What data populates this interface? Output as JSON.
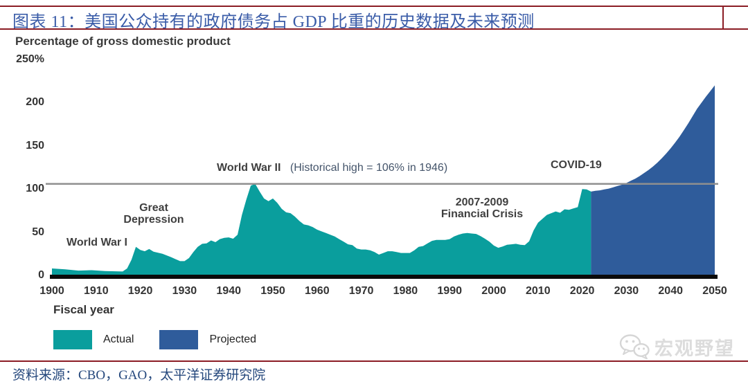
{
  "header": {
    "title": "图表 11：美国公众持有的政府债务占 GDP 比重的历史数据及未来预测"
  },
  "footer": {
    "source": "资料来源：CBO，GAO，太平洋证券研究院",
    "watermark": "宏观野望"
  },
  "legend": {
    "items": [
      {
        "label": "Actual",
        "color": "#0a9e9d"
      },
      {
        "label": "Projected",
        "color": "#2f5c9b"
      }
    ]
  },
  "colors": {
    "rule_red": "#8b1c24",
    "title_blue": "#3a5ca8",
    "source_blue": "#24477c",
    "actual_teal": "#0a9e9d",
    "projected_blue": "#2f5c9b",
    "axis_black": "#0b0b0b",
    "reference_gray": "#8f8f8f"
  },
  "chart_data": {
    "type": "area",
    "title": "Percentage of gross domestic product",
    "xlabel": "Fiscal year",
    "ylabel": "",
    "x_range": [
      1900,
      2050
    ],
    "y_range": [
      0,
      250
    ],
    "grid": false,
    "legend_position": "bottom-left",
    "y_axis": {
      "ticks": [
        {
          "value": 250,
          "label": "250%"
        },
        {
          "value": 200,
          "label": "200"
        },
        {
          "value": 150,
          "label": "150"
        },
        {
          "value": 100,
          "label": "100"
        },
        {
          "value": 50,
          "label": "50"
        },
        {
          "value": 0,
          "label": "0"
        }
      ]
    },
    "x_ticks": [
      1900,
      1910,
      1920,
      1930,
      1940,
      1950,
      1960,
      1970,
      1980,
      1990,
      2000,
      2010,
      2020,
      2030,
      2040,
      2050
    ],
    "reference_line": {
      "value": 106,
      "color": "#8f8f8f",
      "meaning": "Historical high = 106% in 1946"
    },
    "annotations": {
      "wwi": "World War I",
      "great_depression": "Great Depression",
      "wwii": "World War II",
      "wwii_note": "(Historical high = 106% in 1946)",
      "financial_crisis": "2007-2009 Financial Crisis",
      "covid": "COVID-19"
    },
    "series": [
      {
        "name": "Actual",
        "color": "#0a9e9d",
        "points": [
          [
            1900,
            8
          ],
          [
            1903,
            7
          ],
          [
            1906,
            5.5
          ],
          [
            1909,
            6
          ],
          [
            1912,
            5
          ],
          [
            1916,
            4.5
          ],
          [
            1917,
            8
          ],
          [
            1918,
            18
          ],
          [
            1919,
            33
          ],
          [
            1920,
            29.5
          ],
          [
            1921,
            28
          ],
          [
            1922,
            30.5
          ],
          [
            1923,
            27.5
          ],
          [
            1925,
            25
          ],
          [
            1927,
            21
          ],
          [
            1929,
            16.5
          ],
          [
            1930,
            16.5
          ],
          [
            1931,
            20
          ],
          [
            1932,
            27
          ],
          [
            1933,
            33
          ],
          [
            1934,
            36.5
          ],
          [
            1935,
            37
          ],
          [
            1936,
            40.5
          ],
          [
            1937,
            38.5
          ],
          [
            1938,
            42
          ],
          [
            1939,
            43.5
          ],
          [
            1940,
            44
          ],
          [
            1941,
            42.5
          ],
          [
            1942,
            47
          ],
          [
            1943,
            70
          ],
          [
            1944,
            88
          ],
          [
            1945,
            104
          ],
          [
            1946,
            106
          ],
          [
            1947,
            97
          ],
          [
            1948,
            89
          ],
          [
            1949,
            86
          ],
          [
            1950,
            89
          ],
          [
            1951,
            84
          ],
          [
            1952,
            77
          ],
          [
            1953,
            73
          ],
          [
            1954,
            72
          ],
          [
            1955,
            68
          ],
          [
            1956,
            63
          ],
          [
            1957,
            59
          ],
          [
            1958,
            58
          ],
          [
            1959,
            56
          ],
          [
            1960,
            53
          ],
          [
            1961,
            51
          ],
          [
            1962,
            49
          ],
          [
            1963,
            47
          ],
          [
            1964,
            45
          ],
          [
            1965,
            42
          ],
          [
            1966,
            39
          ],
          [
            1967,
            36
          ],
          [
            1968,
            35
          ],
          [
            1969,
            31
          ],
          [
            1970,
            30
          ],
          [
            1971,
            30
          ],
          [
            1972,
            29
          ],
          [
            1973,
            27
          ],
          [
            1974,
            24
          ],
          [
            1975,
            26
          ],
          [
            1976,
            28
          ],
          [
            1977,
            28
          ],
          [
            1978,
            27
          ],
          [
            1979,
            26
          ],
          [
            1980,
            26
          ],
          [
            1981,
            26
          ],
          [
            1982,
            29
          ],
          [
            1983,
            33
          ],
          [
            1984,
            34
          ],
          [
            1985,
            37
          ],
          [
            1986,
            40
          ],
          [
            1987,
            41
          ],
          [
            1988,
            41
          ],
          [
            1989,
            41
          ],
          [
            1990,
            42
          ],
          [
            1991,
            45
          ],
          [
            1992,
            47
          ],
          [
            1993,
            48.5
          ],
          [
            1994,
            49
          ],
          [
            1995,
            48.5
          ],
          [
            1996,
            48
          ],
          [
            1997,
            45.5
          ],
          [
            1998,
            42.5
          ],
          [
            1999,
            39
          ],
          [
            2000,
            34.5
          ],
          [
            2001,
            32
          ],
          [
            2002,
            33.5
          ],
          [
            2003,
            35.5
          ],
          [
            2004,
            36
          ],
          [
            2005,
            36.5
          ],
          [
            2006,
            35.5
          ],
          [
            2007,
            35
          ],
          [
            2008,
            39.5
          ],
          [
            2009,
            52
          ],
          [
            2010,
            61
          ],
          [
            2011,
            65.5
          ],
          [
            2012,
            70
          ],
          [
            2013,
            72
          ],
          [
            2014,
            74
          ],
          [
            2015,
            72.5
          ],
          [
            2016,
            76.5
          ],
          [
            2017,
            76
          ],
          [
            2018,
            77.5
          ],
          [
            2019,
            79
          ],
          [
            2020,
            100
          ],
          [
            2021,
            99.5
          ],
          [
            2022,
            97
          ]
        ]
      },
      {
        "name": "Projected",
        "color": "#2f5c9b",
        "points": [
          [
            2022,
            97
          ],
          [
            2023,
            98
          ],
          [
            2024,
            98.5
          ],
          [
            2025,
            99.5
          ],
          [
            2026,
            100.5
          ],
          [
            2027,
            102
          ],
          [
            2028,
            103.5
          ],
          [
            2029,
            105
          ],
          [
            2030,
            107
          ],
          [
            2031,
            109.5
          ],
          [
            2032,
            112
          ],
          [
            2033,
            115
          ],
          [
            2034,
            118.5
          ],
          [
            2035,
            122
          ],
          [
            2036,
            126
          ],
          [
            2037,
            130.5
          ],
          [
            2038,
            135.5
          ],
          [
            2039,
            141
          ],
          [
            2040,
            147
          ],
          [
            2041,
            153.5
          ],
          [
            2042,
            160.5
          ],
          [
            2043,
            168
          ],
          [
            2044,
            176
          ],
          [
            2045,
            184.5
          ],
          [
            2046,
            193
          ],
          [
            2047,
            200
          ],
          [
            2048,
            207
          ],
          [
            2049,
            213.5
          ],
          [
            2050,
            220
          ]
        ]
      }
    ]
  }
}
